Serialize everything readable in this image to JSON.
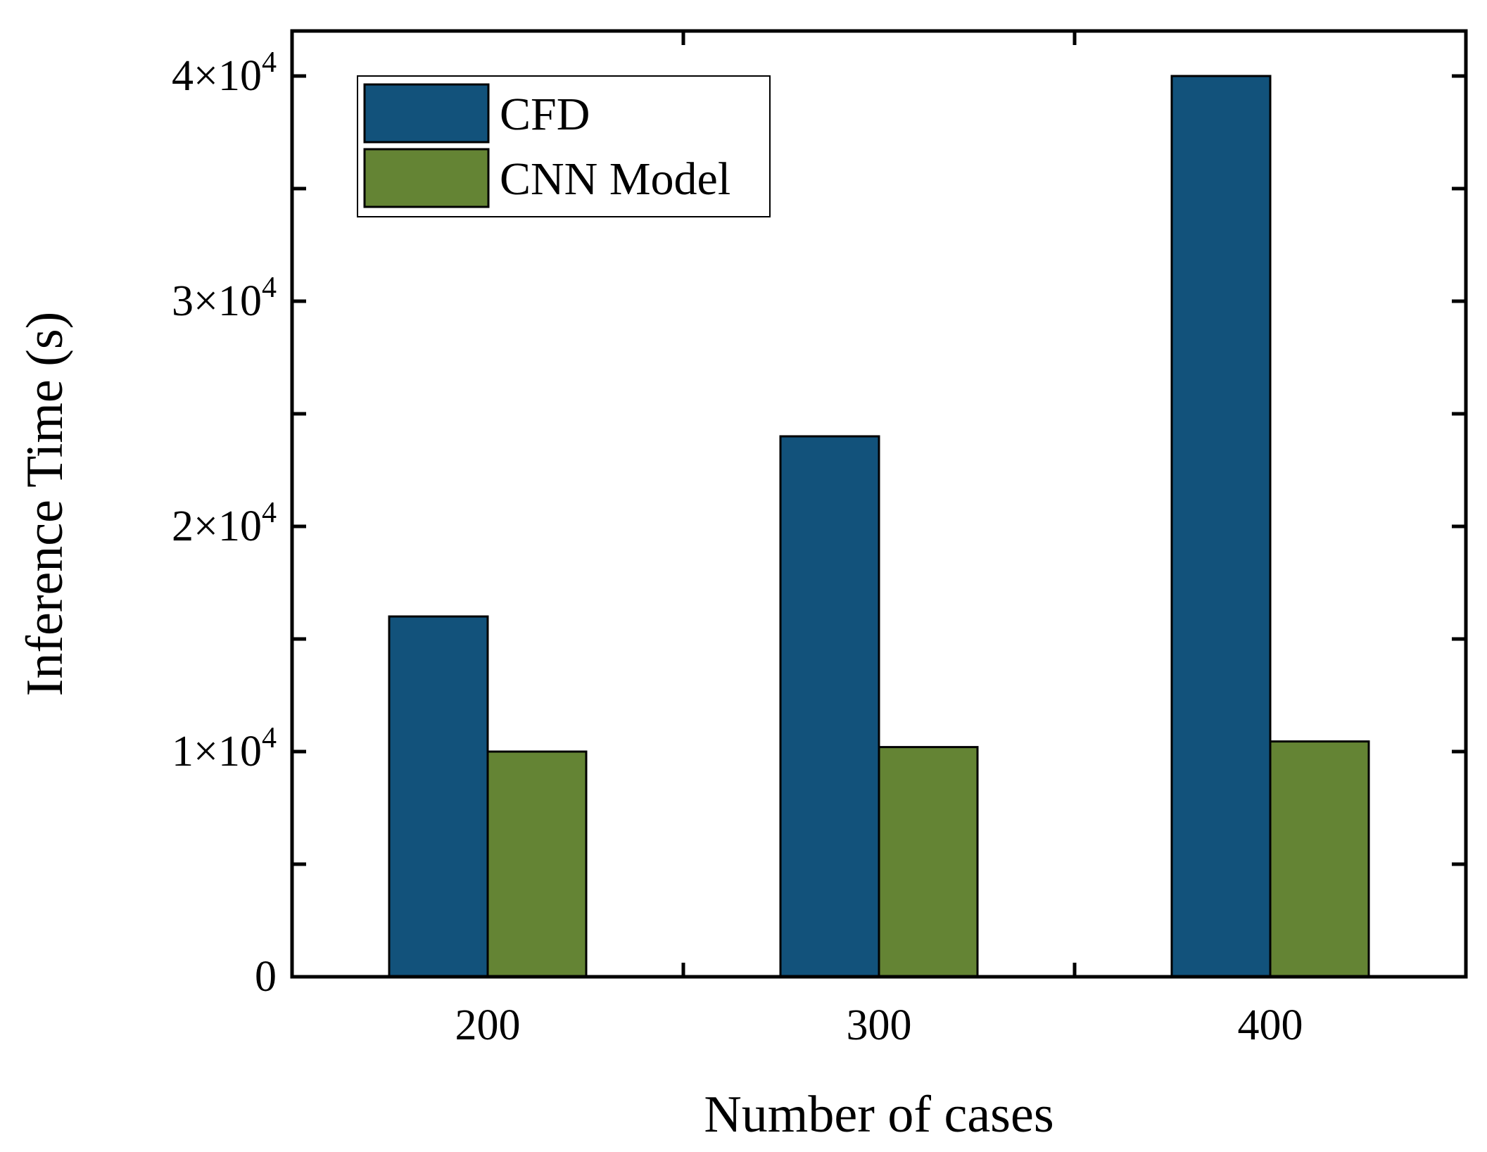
{
  "chart_data": {
    "type": "bar",
    "title": "",
    "xlabel": "Number of cases",
    "ylabel": "Inference Time (s)",
    "categories": [
      "200",
      "300",
      "400"
    ],
    "series": [
      {
        "name": "CFD",
        "color": "#12527B",
        "values": [
          16000,
          24000,
          40000
        ]
      },
      {
        "name": "CNN Model",
        "color": "#648434",
        "values": [
          10000,
          10200,
          10450
        ]
      }
    ],
    "ylim": [
      0,
      42000
    ],
    "yticks": [
      {
        "value": 0,
        "mantissa": "0",
        "exponent": ""
      },
      {
        "value": 10000,
        "mantissa": "1×10",
        "exponent": "4"
      },
      {
        "value": 20000,
        "mantissa": "2×10",
        "exponent": "4"
      },
      {
        "value": 30000,
        "mantissa": "3×10",
        "exponent": "4"
      },
      {
        "value": 40000,
        "mantissa": "4×10",
        "exponent": "4"
      }
    ],
    "y_minor_step": 5000,
    "grid": false,
    "legend_position": "top-left"
  }
}
